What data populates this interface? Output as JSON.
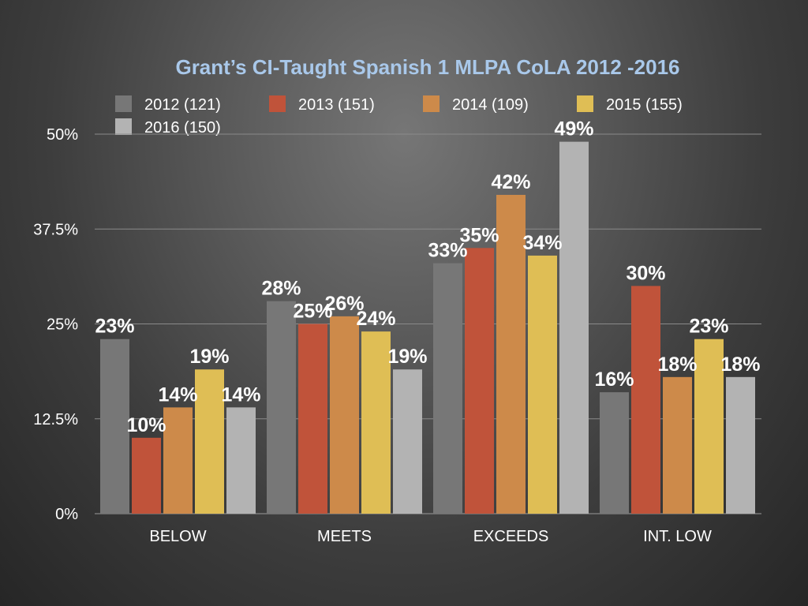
{
  "chart_data": {
    "type": "bar",
    "title": "Grant’s CI-Taught Spanish 1 MLPA CoLA 2012 -2016",
    "xlabel": "",
    "ylabel": "",
    "categories": [
      "BELOW",
      "MEETS",
      "EXCEEDS",
      "INT. LOW"
    ],
    "series": [
      {
        "name": "2012 (121)",
        "color": "#777777",
        "values": [
          23,
          28,
          33,
          16
        ],
        "labels": [
          "23%",
          "28%",
          "33%",
          "16%"
        ]
      },
      {
        "name": "2013 (151)",
        "color": "#c0533a",
        "values": [
          10,
          25,
          35,
          30
        ],
        "labels": [
          "10%",
          "25%",
          "35%",
          "30%"
        ]
      },
      {
        "name": "2014 (109)",
        "color": "#cd8a4a",
        "values": [
          14,
          26,
          42,
          18
        ],
        "labels": [
          "14%",
          "26%",
          "42%",
          "18%"
        ]
      },
      {
        "name": "2015 (155)",
        "color": "#dfbe55",
        "values": [
          19,
          24,
          34,
          23
        ],
        "labels": [
          "19%",
          "24%",
          "34%",
          "23%"
        ]
      },
      {
        "name": "2016 (150)",
        "color": "#b3b3b3",
        "values": [
          14,
          19,
          49,
          18
        ],
        "labels": [
          "14%",
          "19%",
          "49%",
          "18%"
        ]
      }
    ],
    "ylim": [
      0,
      50
    ],
    "yticks": [
      0,
      12.5,
      25,
      37.5,
      50
    ],
    "ytick_labels": [
      "0%",
      "12.5%",
      "25%",
      "37.5%",
      "50%"
    ],
    "grid": true,
    "legend_position": "top"
  }
}
